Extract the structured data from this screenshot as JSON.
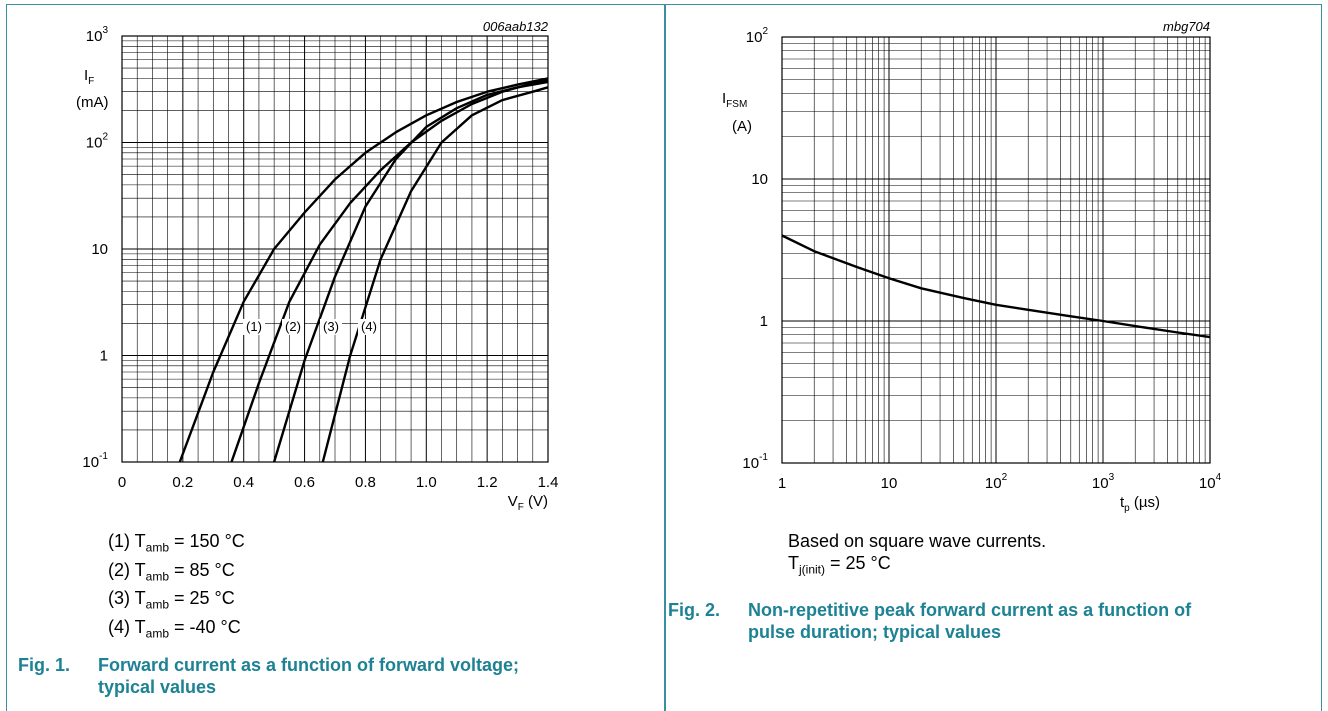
{
  "figures": [
    {
      "number": "Fig. 1.",
      "caption": "Forward current as a function of forward voltage; typical values",
      "ref_code": "006aab132",
      "notes": [
        {
          "prefix": "(1) T",
          "sub": "amb",
          "suffix": " = 150 °C"
        },
        {
          "prefix": "(2) T",
          "sub": "amb",
          "suffix": " = 85 °C"
        },
        {
          "prefix": "(3) T",
          "sub": "amb",
          "suffix": " = 25 °C"
        },
        {
          "prefix": "(4) T",
          "sub": "amb",
          "suffix": " = -40 °C"
        }
      ]
    },
    {
      "number": "Fig. 2.",
      "caption": "Non-repetitive peak forward current as a function of pulse duration; typical values",
      "ref_code": "mbg704",
      "notes": [
        {
          "prefix": "Based on square wave currents.",
          "sub": "",
          "suffix": ""
        },
        {
          "prefix": "T",
          "sub": "j(init)",
          "suffix": " = 25 °C"
        }
      ]
    }
  ],
  "chart_data": [
    {
      "type": "line",
      "title": "",
      "xlabel": {
        "main": "V",
        "sub": "F",
        "rest": " (V)"
      },
      "ylabel": {
        "main": "I",
        "sub": "F",
        "unit": "(mA)"
      },
      "x_scale": "linear",
      "y_scale": "log",
      "xlim": [
        0,
        1.4
      ],
      "ylim": [
        0.1,
        1000
      ],
      "grid": true,
      "x_ticks": [
        "0",
        "0.2",
        "0.4",
        "0.6",
        "0.8",
        "1.0",
        "1.2",
        "1.4"
      ],
      "y_ticks": [
        {
          "base": "10",
          "exp": "-1"
        },
        {
          "base": "1",
          "exp": ""
        },
        {
          "base": "10",
          "exp": ""
        },
        {
          "base": "10",
          "exp": "2"
        },
        {
          "base": "10",
          "exp": "3"
        }
      ],
      "series": [
        {
          "label": "(1)",
          "x": [
            0.19,
            0.3,
            0.4,
            0.5,
            0.6,
            0.7,
            0.8,
            0.9,
            1.0,
            1.1,
            1.2,
            1.3,
            1.4
          ],
          "y": [
            0.1,
            0.7,
            3.2,
            10,
            22,
            45,
            80,
            125,
            180,
            240,
            300,
            350,
            400
          ]
        },
        {
          "label": "(2)",
          "x": [
            0.36,
            0.45,
            0.55,
            0.65,
            0.75,
            0.85,
            0.95,
            1.05,
            1.15,
            1.25,
            1.35,
            1.4
          ],
          "y": [
            0.1,
            0.55,
            3.2,
            11,
            27,
            55,
            100,
            160,
            230,
            300,
            360,
            385
          ]
        },
        {
          "label": "(3)",
          "x": [
            0.5,
            0.6,
            0.7,
            0.8,
            0.9,
            1.0,
            1.1,
            1.2,
            1.3,
            1.4
          ],
          "y": [
            0.1,
            0.9,
            5.5,
            25,
            70,
            140,
            210,
            280,
            330,
            370
          ]
        },
        {
          "label": "(4)",
          "x": [
            0.66,
            0.75,
            0.85,
            0.95,
            1.05,
            1.15,
            1.25,
            1.35,
            1.4
          ],
          "y": [
            0.1,
            1.0,
            8,
            35,
            100,
            180,
            250,
            300,
            330
          ]
        }
      ]
    },
    {
      "type": "line",
      "title": "",
      "xlabel": {
        "main": "t",
        "sub": "p",
        "rest": " (µs)"
      },
      "ylabel": {
        "main": "I",
        "sub": "FSM",
        "unit": "(A)"
      },
      "x_scale": "log",
      "y_scale": "log",
      "xlim": [
        1,
        10000
      ],
      "ylim": [
        0.1,
        100
      ],
      "grid": true,
      "x_ticks": [
        {
          "base": "1",
          "exp": ""
        },
        {
          "base": "10",
          "exp": ""
        },
        {
          "base": "10",
          "exp": "2"
        },
        {
          "base": "10",
          "exp": "3"
        },
        {
          "base": "10",
          "exp": "4"
        }
      ],
      "y_ticks": [
        {
          "base": "10",
          "exp": "-1"
        },
        {
          "base": "1",
          "exp": ""
        },
        {
          "base": "10",
          "exp": ""
        },
        {
          "base": "10",
          "exp": "2"
        }
      ],
      "series": [
        {
          "x": [
            1,
            2,
            5,
            10,
            20,
            50,
            100,
            200,
            500,
            1000,
            2000,
            5000,
            10000
          ],
          "y": [
            4.0,
            3.1,
            2.4,
            2.0,
            1.7,
            1.45,
            1.3,
            1.2,
            1.08,
            1.0,
            0.92,
            0.83,
            0.77
          ]
        }
      ]
    }
  ]
}
